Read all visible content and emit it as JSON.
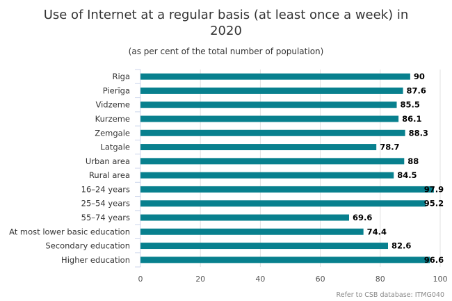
{
  "chart_data": {
    "type": "bar",
    "orientation": "horizontal",
    "title": "Use of Internet at a regular basis (at least once a week) in 2020",
    "title_lines": [
      "Use of Internet at a regular basis (at least once a week) in",
      "2020"
    ],
    "subtitle": "(as per cent of the total number of population)",
    "categories": [
      "Riga",
      "Pierīga",
      "Vidzeme",
      "Kurzeme",
      "Zemgale",
      "Latgale",
      "Urban area",
      "Rural area",
      "16–24 years",
      "25–54 years",
      "55–74 years",
      "At most lower basic education",
      "Secondary education",
      "Higher education"
    ],
    "values": [
      90,
      87.6,
      85.5,
      86.1,
      88.3,
      78.7,
      88,
      84.5,
      97.9,
      95.2,
      69.6,
      74.4,
      82.6,
      96.6
    ],
    "value_labels": [
      "90",
      "87.6",
      "85.5",
      "86.1",
      "88.3",
      "78.7",
      "88",
      "84.5",
      "97.9",
      "95.2",
      "69.6",
      "74.4",
      "82.6",
      "96.6"
    ],
    "xlim": [
      0,
      100
    ],
    "xticks": [
      0,
      20,
      40,
      60,
      80,
      100
    ],
    "xtick_labels": [
      "0",
      "20",
      "40",
      "60",
      "80",
      "100"
    ],
    "grid": true,
    "bar_color": "#08808e",
    "legend": "none"
  },
  "credit": "Refer to CSB database: ITMG040"
}
